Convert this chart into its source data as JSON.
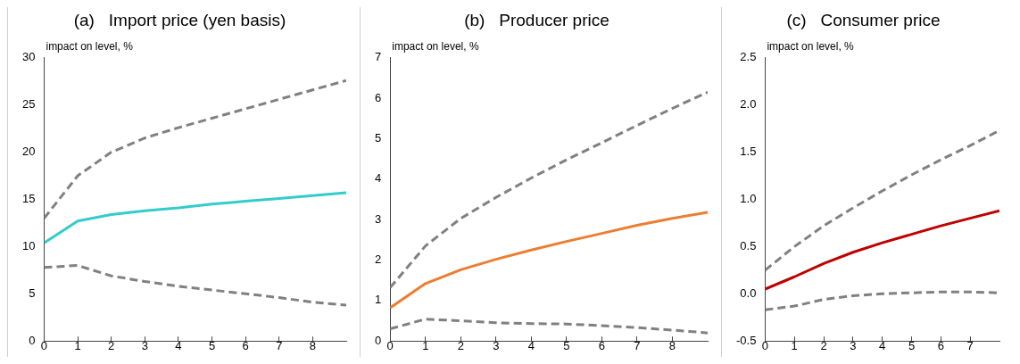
{
  "chart_data": [
    {
      "type": "line",
      "title": "(a)   Import price (yen basis)",
      "ylabel": "impact on level, %",
      "x": [
        0,
        1,
        2,
        3,
        4,
        5,
        6,
        7,
        8,
        9
      ],
      "xlim": [
        0,
        9
      ],
      "xticks": [
        0,
        1,
        2,
        3,
        4,
        5,
        6,
        7,
        8
      ],
      "ylim": [
        0,
        30
      ],
      "yticks": [
        0,
        5,
        10,
        15,
        20,
        25,
        30
      ],
      "grid": false,
      "legend": false,
      "series": [
        {
          "color": "#808080",
          "line_style": "dashed",
          "values": [
            13.0,
            17.5,
            20.0,
            21.5,
            22.6,
            23.6,
            24.6,
            25.6,
            26.6,
            27.6
          ]
        },
        {
          "color": "#808080",
          "line_style": "dashed",
          "values": [
            7.8,
            8.0,
            6.9,
            6.3,
            5.8,
            5.4,
            5.0,
            4.6,
            4.1,
            3.8
          ]
        },
        {
          "color": "#33cccc",
          "line_style": "solid",
          "values": [
            10.4,
            12.7,
            13.4,
            13.8,
            14.1,
            14.5,
            14.8,
            15.1,
            15.4,
            15.7
          ]
        }
      ]
    },
    {
      "type": "line",
      "title": "(b)   Producer price",
      "ylabel": "impact on level, %",
      "x": [
        0,
        1,
        2,
        3,
        4,
        5,
        6,
        7,
        8,
        9
      ],
      "xlim": [
        0,
        9
      ],
      "xticks": [
        0,
        1,
        2,
        3,
        4,
        5,
        6,
        7,
        8
      ],
      "ylim": [
        0,
        7
      ],
      "yticks": [
        0,
        1,
        2,
        3,
        4,
        5,
        6,
        7
      ],
      "grid": false,
      "legend": false,
      "series": [
        {
          "color": "#808080",
          "line_style": "dashed",
          "values": [
            1.32,
            2.35,
            3.03,
            3.55,
            4.03,
            4.48,
            4.9,
            5.33,
            5.75,
            6.15
          ]
        },
        {
          "color": "#808080",
          "line_style": "dashed",
          "values": [
            0.3,
            0.54,
            0.5,
            0.45,
            0.43,
            0.42,
            0.38,
            0.33,
            0.27,
            0.2
          ]
        },
        {
          "color": "#ed7d31",
          "line_style": "solid",
          "values": [
            0.82,
            1.42,
            1.76,
            2.02,
            2.25,
            2.46,
            2.66,
            2.86,
            3.03,
            3.18
          ]
        }
      ]
    },
    {
      "type": "line",
      "title": "(c)   Consumer price",
      "ylabel": "impact on level, %",
      "x": [
        0,
        1,
        2,
        3,
        4,
        5,
        6,
        7,
        8
      ],
      "xlim": [
        0,
        8
      ],
      "xticks": [
        0,
        1,
        2,
        3,
        4,
        5,
        6,
        7
      ],
      "ylim": [
        -0.5,
        2.5
      ],
      "yticks": [
        {
          "value": -0.5,
          "label": "-0.5"
        },
        {
          "value": 0,
          "label": "0.0"
        },
        {
          "value": 0.5,
          "label": "0.5"
        },
        {
          "value": 1,
          "label": "1.0"
        },
        {
          "value": 1.5,
          "label": "1.5"
        },
        {
          "value": 2,
          "label": "2.0"
        },
        {
          "value": 2.5,
          "label": "2.5"
        }
      ],
      "grid": false,
      "legend": false,
      "series": [
        {
          "color": "#808080",
          "line_style": "dashed",
          "values": [
            0.25,
            0.5,
            0.72,
            0.91,
            1.09,
            1.26,
            1.42,
            1.57,
            1.73
          ]
        },
        {
          "color": "#808080",
          "line_style": "dashed",
          "values": [
            -0.17,
            -0.13,
            -0.06,
            -0.02,
            0.0,
            0.01,
            0.02,
            0.02,
            0.01
          ]
        },
        {
          "color": "#c00000",
          "line_style": "solid",
          "values": [
            0.05,
            0.18,
            0.32,
            0.44,
            0.54,
            0.63,
            0.72,
            0.8,
            0.88
          ]
        }
      ]
    }
  ]
}
